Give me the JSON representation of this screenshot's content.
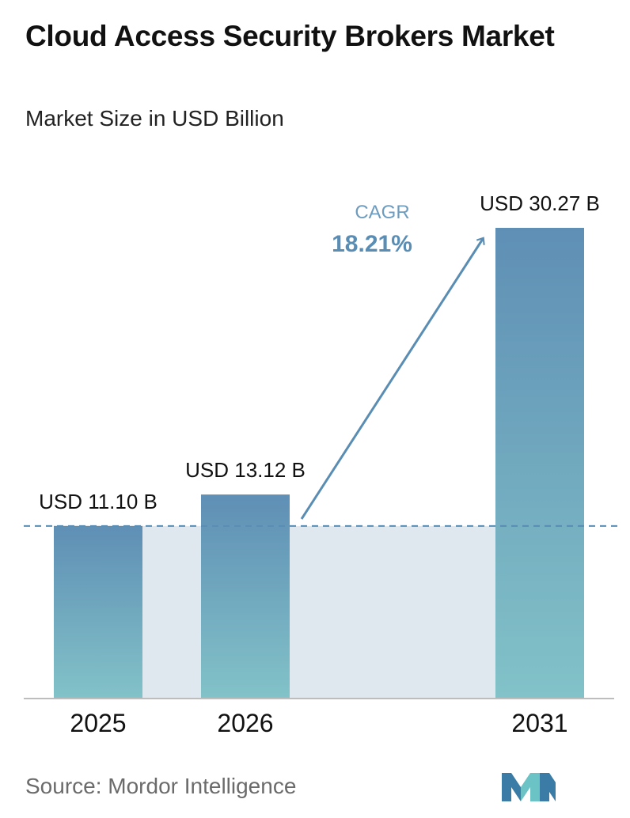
{
  "title": "Cloud Access Security Brokers Market",
  "subtitle": "Market Size in USD Billion",
  "source": "Source:  Mordor Intelligence",
  "cagr": {
    "label": "CAGR",
    "value": "18.21%"
  },
  "colors": {
    "bar_top": "#5f8fb5",
    "bar_bottom": "#82c2c8",
    "band": "#dfe8ef",
    "dashed_line": "#5a8db3",
    "arrow": "#5a8db3",
    "cagr_label": "#6d9cbf",
    "cagr_value": "#5a8db3",
    "axis": "#bdbdbd",
    "logo_a": "#3a7ca5",
    "logo_b": "#6cc3c6"
  },
  "chart_data": {
    "type": "bar",
    "categories": [
      "2025",
      "2026",
      "2031"
    ],
    "values": [
      11.1,
      13.12,
      30.27
    ],
    "value_labels": [
      "USD 11.10 B",
      "USD 13.12 B",
      "USD 30.27 B"
    ],
    "title": "Cloud Access Security Brokers Market",
    "subtitle": "Market Size in USD Billion",
    "xlabel": "",
    "ylabel": "",
    "ylim": [
      0,
      30.27
    ],
    "grid": false,
    "legend": "none",
    "reference_line": {
      "value": 11.1,
      "style": "dashed"
    },
    "annotation": {
      "text": "CAGR 18.21%",
      "kind": "arrow",
      "from_category": "2026",
      "to_category": "2031"
    }
  }
}
